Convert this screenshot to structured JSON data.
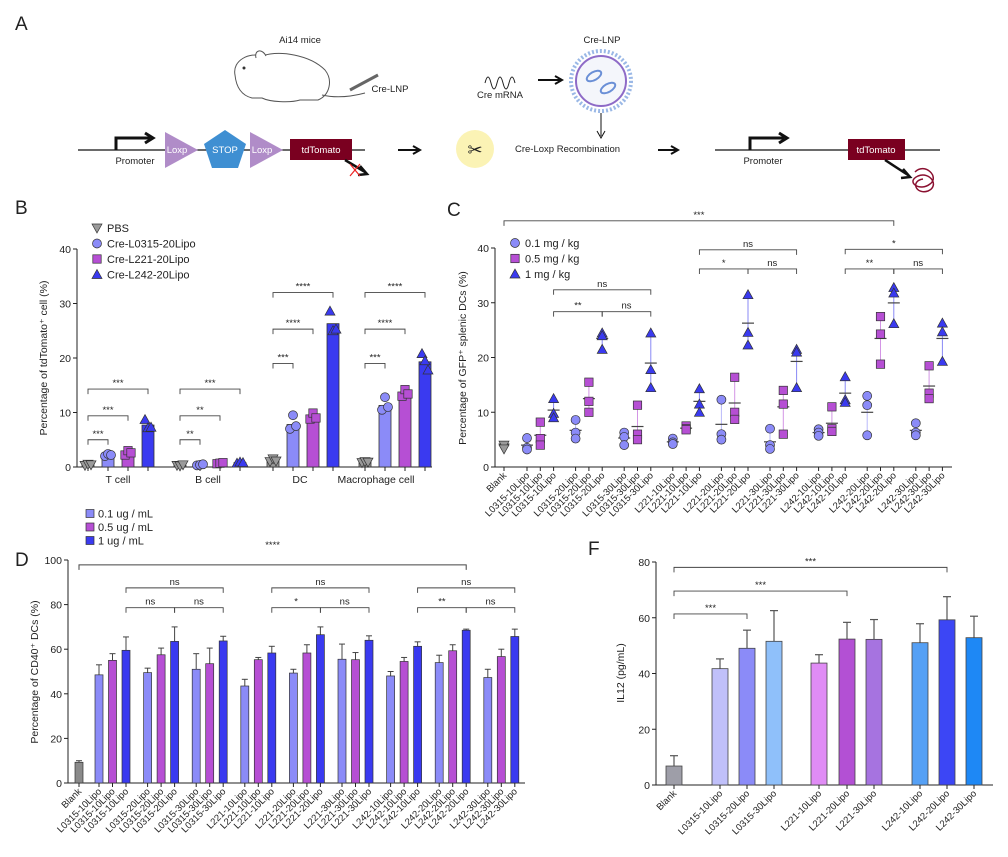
{
  "panel_a": {
    "label": "A",
    "mouse_label": "Ai14 mice",
    "injection_label": "Cre-LNP",
    "mrna_label": "Cre mRNA",
    "lnp_label": "Cre-LNP",
    "promoter_left": "Promoter",
    "loxp_1": "Loxp",
    "stop": "STOP",
    "loxp_2": "Loxp",
    "tdtomato_left": "tdTomato",
    "recombination": "Cre-Loxp Recombination",
    "promoter_right": "Promoter",
    "tdtomato_right": "tdTomato",
    "colors": {
      "loxp": "#b08cc8",
      "stop": "#3f8fd2",
      "tdtomato": "#7a0020",
      "scissors_bg": "#fbf3b5"
    }
  },
  "chart_data": [
    {
      "panel": "B",
      "type": "bar",
      "ylabel": "Percentage of tdTomato⁺ cell (%)",
      "ylim": [
        0,
        40
      ],
      "yticks": [
        "0",
        "10",
        "20",
        "30",
        "40"
      ],
      "categories": [
        "T cell",
        "B cell",
        "DC",
        "Macrophage cell"
      ],
      "legend_position": "top-left",
      "series": [
        {
          "name": "PBS",
          "marker": "triangle-down",
          "color": "#9a9a9a",
          "values": [
            0.4,
            0.3,
            1.2,
            0.9
          ],
          "points": [
            [
              0.3,
              0.5,
              0.4
            ],
            [
              0.3,
              0.2,
              0.4
            ],
            [
              1.0,
              1.5,
              1.1
            ],
            [
              0.8,
              1.0,
              0.9
            ]
          ]
        },
        {
          "name": "Cre-L0315-20Lipo",
          "marker": "circle",
          "color": "#8b8bf8",
          "values": [
            2.2,
            0.4,
            7.8,
            11.3
          ],
          "points": [
            [
              2.0,
              2.4,
              2.2
            ],
            [
              0.3,
              0.4,
              0.5
            ],
            [
              7.0,
              9.5,
              7.5
            ],
            [
              10.5,
              12.8,
              11.0
            ]
          ]
        },
        {
          "name": "Cre-L221-20Lipo",
          "marker": "square",
          "color": "#b64fd4",
          "values": [
            2.6,
            0.7,
            9.2,
            13.5
          ],
          "points": [
            [
              2.2,
              3.0,
              2.6
            ],
            [
              0.6,
              0.7,
              0.8
            ],
            [
              8.8,
              9.9,
              9.0
            ],
            [
              13.0,
              14.2,
              13.4
            ]
          ]
        },
        {
          "name": "Cre-L242-20Lipo",
          "marker": "triangle-up",
          "color": "#3a3af0",
          "values": [
            7.7,
            0.8,
            26.3,
            19.3
          ],
          "points": [
            [
              8.7,
              7.2,
              7.3
            ],
            [
              0.7,
              0.9,
              0.8
            ],
            [
              28.6,
              25.0,
              25.3
            ],
            [
              20.8,
              19.5,
              17.8
            ]
          ]
        }
      ],
      "significance": [
        {
          "category": 0,
          "from": 0,
          "to": 1,
          "label": "***",
          "y": 5
        },
        {
          "category": 0,
          "from": 0,
          "to": 2,
          "label": "***",
          "y": 9.4
        },
        {
          "category": 0,
          "from": 0,
          "to": 3,
          "label": "***",
          "y": 14.3
        },
        {
          "category": 1,
          "from": 0,
          "to": 1,
          "label": "**",
          "y": 5
        },
        {
          "category": 1,
          "from": 0,
          "to": 2,
          "label": "**",
          "y": 9.4
        },
        {
          "category": 1,
          "from": 0,
          "to": 3,
          "label": "***",
          "y": 14.3
        },
        {
          "category": 2,
          "from": 0,
          "to": 1,
          "label": "***",
          "y": 19
        },
        {
          "category": 2,
          "from": 0,
          "to": 2,
          "label": "****",
          "y": 25.3
        },
        {
          "category": 2,
          "from": 0,
          "to": 3,
          "label": "****",
          "y": 32
        },
        {
          "category": 3,
          "from": 0,
          "to": 1,
          "label": "***",
          "y": 19
        },
        {
          "category": 3,
          "from": 0,
          "to": 2,
          "label": "****",
          "y": 25.3
        },
        {
          "category": 3,
          "from": 0,
          "to": 3,
          "label": "****",
          "y": 32
        }
      ]
    },
    {
      "panel": "C",
      "type": "scatter",
      "ylabel": "Percentage of GFP⁺ splenic DCs (%)",
      "ylim": [
        0,
        40
      ],
      "yticks": [
        "0",
        "10",
        "20",
        "30",
        "40"
      ],
      "legend_position": "top-left",
      "legend": [
        {
          "name": "0.1 mg / kg",
          "marker": "circle",
          "color": "#8b8bf8"
        },
        {
          "name": "0.5 mg / kg",
          "marker": "square",
          "color": "#b64fd4"
        },
        {
          "name": "1 mg / kg",
          "marker": "triangle-up",
          "color": "#3a3af0"
        }
      ],
      "blank": {
        "label": "Blank",
        "color": "#9a9a9a",
        "points": [
          3.5,
          4.0,
          3.3
        ],
        "mean": 3.6
      },
      "categories": [
        "L0315-10Lipo",
        "L0315-10Lipo",
        "L0315-10Lipo",
        "L0315-20Lipo",
        "L0315-20Lipo",
        "L0315-20Lipo",
        "L0315-30Lipo",
        "L0315-30Lipo",
        "L0315-30Lipo",
        "L221-10Lipo",
        "L221-10Lipo",
        "L221-10Lipo",
        "L221-20Lipo",
        "L221-20Lipo",
        "L221-20Lipo",
        "L221-30Lipo",
        "L221-30Lipo",
        "L221-30Lipo",
        "L242-10Lipo",
        "L242-10Lipo",
        "L242-10Lipo",
        "L242-20Lipo",
        "L242-20Lipo",
        "L242-20Lipo",
        "L242-30Lipo",
        "L242-30Lipo",
        "L242-30Lipo"
      ],
      "points": [
        [
          5.3,
          3.5,
          3.2
        ],
        [
          8.2,
          5.2,
          4.0
        ],
        [
          12.5,
          9.8,
          9.0
        ],
        [
          8.6,
          6.3,
          5.2
        ],
        [
          15.5,
          12.0,
          10.0
        ],
        [
          24.5,
          24.0,
          21.5
        ],
        [
          6.3,
          5.5,
          4.0
        ],
        [
          11.3,
          6.0,
          5.0
        ],
        [
          24.5,
          17.8,
          14.5
        ],
        [
          5.2,
          4.5,
          4.2
        ],
        [
          7.5,
          7.0,
          6.8
        ],
        [
          14.3,
          11.5,
          10.0
        ],
        [
          12.3,
          6.0,
          5.0
        ],
        [
          16.4,
          10.0,
          8.7
        ],
        [
          31.5,
          24.6,
          22.3
        ],
        [
          7.0,
          4.0,
          3.3
        ],
        [
          14.0,
          11.5,
          6.0
        ],
        [
          21.5,
          21.0,
          14.5
        ],
        [
          6.9,
          6.3,
          5.7
        ],
        [
          11.0,
          7.0,
          6.5
        ],
        [
          16.5,
          12.3,
          11.8
        ],
        [
          13.0,
          11.3,
          5.8
        ],
        [
          27.5,
          24.3,
          18.8
        ],
        [
          32.8,
          31.8,
          26.2
        ],
        [
          8.0,
          6.3,
          5.8
        ],
        [
          18.5,
          13.5,
          12.5
        ],
        [
          26.3,
          24.7,
          19.3
        ]
      ],
      "means": [
        4.0,
        5.8,
        10.4,
        6.7,
        12.5,
        23.5,
        5.3,
        7.4,
        19.0,
        4.6,
        7.1,
        12.0,
        7.8,
        11.7,
        26.3,
        4.6,
        11.0,
        19.3,
        6.3,
        8.0,
        13.5,
        10.0,
        23.5,
        30.0,
        6.7,
        14.8,
        23.5
      ],
      "significance": [
        {
          "from": -1,
          "to": 23,
          "label": "***",
          "y": 45
        },
        {
          "from": 2,
          "to": 8,
          "label": "ns",
          "y": 32.4
        },
        {
          "from": 2,
          "to": 5,
          "label": "**",
          "y": 28.4
        },
        {
          "from": 5,
          "to": 8,
          "label": "ns",
          "y": 28.4
        },
        {
          "from": 11,
          "to": 17,
          "label": "ns",
          "y": 39.7
        },
        {
          "from": 11,
          "to": 14,
          "label": "*",
          "y": 36.2
        },
        {
          "from": 14,
          "to": 17,
          "label": "ns",
          "y": 36.2
        },
        {
          "from": 20,
          "to": 26,
          "label": "*",
          "y": 39.8
        },
        {
          "from": 20,
          "to": 23,
          "label": "**",
          "y": 36.2
        },
        {
          "from": 23,
          "to": 26,
          "label": "ns",
          "y": 36.2
        }
      ]
    },
    {
      "panel": "D",
      "type": "bar",
      "ylabel": "Percentage of CD40⁺ DCs (%)",
      "ylim": [
        0,
        100
      ],
      "yticks": [
        "0",
        "20",
        "40",
        "60",
        "80",
        "100"
      ],
      "legend_position": "top-left",
      "legend": [
        {
          "name": "0.1 ug / mL",
          "color": "#8b8bf8"
        },
        {
          "name": "0.5 ug / mL",
          "color": "#b64fd4"
        },
        {
          "name": "1 ug / mL",
          "color": "#3a3af0"
        }
      ],
      "blank": {
        "label": "Blank",
        "color": "#8a8a8a",
        "value": 9.3,
        "error_upper": 10.0
      },
      "categories": [
        "L0315-10Lipo",
        "L0315-10Lipo",
        "L0315-10Lipo",
        "L0315-20Lipo",
        "L0315-20Lipo",
        "L0315-20Lipo",
        "L0315-30Lipo",
        "L0315-30Lipo",
        "L0315-30Lipo",
        "L221-10Lipo",
        "L221-10Lipo",
        "L221-10Lipo",
        "L221-20Lipo",
        "L221-20Lipo",
        "L221-20Lipo",
        "L221-30Lipo",
        "L221-30Lipo",
        "L221-30Lipo",
        "L242-10Lipo",
        "L242-10Lipo",
        "L242-10Lipo",
        "L242-20Lipo",
        "L242-20Lipo",
        "L242-20Lipo",
        "L242-30Lipo",
        "L242-30Lipo",
        "L242-30Lipo"
      ],
      "values": [
        48.5,
        55,
        59.5,
        49.5,
        57.5,
        63.5,
        51,
        53.5,
        63.7,
        43.5,
        55.3,
        58.3,
        49.3,
        58.3,
        66.5,
        55.5,
        55.3,
        64,
        48,
        54.5,
        61.3,
        54,
        59.3,
        68.5,
        47.3,
        56.7,
        65.7
      ],
      "error_upper": [
        53,
        58,
        65.5,
        51.5,
        60.5,
        70,
        58,
        60.5,
        65.8,
        46.5,
        56.3,
        61.3,
        51,
        62,
        70,
        62.3,
        58.5,
        66,
        50,
        56.3,
        63.3,
        57.3,
        62,
        69,
        51,
        60,
        69
      ],
      "significance": [
        {
          "from": -1,
          "to": 23,
          "label": "****",
          "y": 97.8
        },
        {
          "from": 2,
          "to": 8,
          "label": "ns",
          "y": 87.5
        },
        {
          "from": 2,
          "to": 5,
          "label": "ns",
          "y": 78.6
        },
        {
          "from": 5,
          "to": 8,
          "label": "ns",
          "y": 78.6
        },
        {
          "from": 11,
          "to": 17,
          "label": "ns",
          "y": 87.5
        },
        {
          "from": 11,
          "to": 14,
          "label": "*",
          "y": 78.6
        },
        {
          "from": 14,
          "to": 17,
          "label": "ns",
          "y": 78.6
        },
        {
          "from": 20,
          "to": 26,
          "label": "ns",
          "y": 87.5
        },
        {
          "from": 20,
          "to": 23,
          "label": "**",
          "y": 78.6
        },
        {
          "from": 23,
          "to": 26,
          "label": "ns",
          "y": 78.6
        }
      ]
    },
    {
      "panel": "F",
      "type": "bar",
      "ylabel": "IL12 (pg/mL)",
      "ylim": [
        0,
        80
      ],
      "yticks": [
        "0",
        "20",
        "40",
        "60",
        "80"
      ],
      "categories": [
        "Blank",
        "L0315-10Lipo",
        "L0315-20Lipo",
        "L0315-30Lipo",
        "L221-10Lipo",
        "L221-20Lipo",
        "L221-30Lipo",
        "L242-10Lipo",
        "L242-20Lipo",
        "L242-30Lipo"
      ],
      "values": [
        6.8,
        41.7,
        49.0,
        51.5,
        43.7,
        52.3,
        52.2,
        51.0,
        59.2,
        52.8
      ],
      "error_upper": [
        10.5,
        45.2,
        55.5,
        62.5,
        46.7,
        58.3,
        59.3,
        57.8,
        67.5,
        60.5
      ],
      "colors": [
        "#9e9ea8",
        "#c0c0fa",
        "#8b8bf8",
        "#8fc0fa",
        "#e08cf5",
        "#b350d4",
        "#a673e0",
        "#55a0f5",
        "#3c46f5",
        "#1e88f5"
      ],
      "significance": [
        {
          "from": 0,
          "to": 2,
          "label": "***",
          "y": 61.3
        },
        {
          "from": 0,
          "to": 5,
          "label": "***",
          "y": 69.5
        },
        {
          "from": 0,
          "to": 8,
          "label": "***",
          "y": 78
        }
      ]
    }
  ],
  "panel_labels": {
    "b": "B",
    "c": "C",
    "d": "D",
    "f": "F"
  }
}
